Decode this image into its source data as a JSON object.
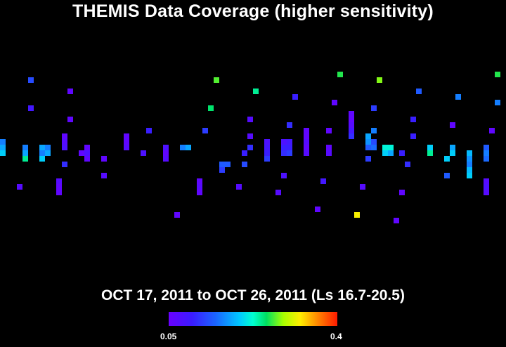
{
  "chart_data": {
    "type": "heatmap",
    "title": "THEMIS Data Coverage (higher sensitivity)",
    "subtitle": "OCT 17, 2011 to OCT 26, 2011 (Ls 16.7-20.5)",
    "colorbar": {
      "min": 0.05,
      "max": 0.4,
      "min_label": "0.05",
      "max_label": "0.4"
    },
    "cells": [
      [
        0,
        198,
        3,
        0.16
      ],
      [
        0,
        206,
        3,
        0.18
      ],
      [
        0,
        214,
        3,
        0.2
      ],
      [
        32,
        206,
        3,
        0.16
      ],
      [
        32,
        214,
        2,
        0.18
      ],
      [
        32,
        222,
        1,
        0.24
      ],
      [
        40,
        110,
        1,
        0.13
      ],
      [
        40,
        150,
        1,
        0.09
      ],
      [
        56,
        206,
        1,
        0.18
      ],
      [
        56,
        214,
        1,
        0.16
      ],
      [
        56,
        222,
        1,
        0.2
      ],
      [
        64,
        206,
        1,
        0.16
      ],
      [
        64,
        214,
        1,
        0.18
      ],
      [
        88,
        190,
        3,
        0.06
      ],
      [
        88,
        198,
        2,
        0.07
      ],
      [
        88,
        206,
        2,
        0.08
      ],
      [
        88,
        230,
        1,
        0.11
      ],
      [
        96,
        126,
        1,
        0.06
      ],
      [
        96,
        166,
        1,
        0.06
      ],
      [
        112,
        214,
        1,
        0.06
      ],
      [
        120,
        206,
        2,
        0.06
      ],
      [
        120,
        214,
        2,
        0.08
      ],
      [
        120,
        222,
        1,
        0.06
      ],
      [
        144,
        222,
        1,
        0.06
      ],
      [
        144,
        246,
        1,
        0.07
      ],
      [
        176,
        190,
        3,
        0.06
      ],
      [
        176,
        198,
        2,
        0.06
      ],
      [
        176,
        206,
        1,
        0.07
      ],
      [
        200,
        214,
        1,
        0.08
      ],
      [
        208,
        182,
        1,
        0.1
      ],
      [
        24,
        262,
        1,
        0.07
      ],
      [
        80,
        254,
        3,
        0.07
      ],
      [
        80,
        262,
        2,
        0.06
      ],
      [
        80,
        270,
        1,
        0.06
      ],
      [
        232,
        206,
        1,
        0.08
      ],
      [
        232,
        214,
        1,
        0.06
      ],
      [
        232,
        222,
        1,
        0.07
      ],
      [
        248,
        302,
        1,
        0.06
      ],
      [
        256,
        206,
        3,
        0.16
      ],
      [
        264,
        206,
        2,
        0.18
      ],
      [
        280,
        254,
        3,
        0.06
      ],
      [
        280,
        262,
        2,
        0.07
      ],
      [
        280,
        270,
        1,
        0.06
      ],
      [
        288,
        182,
        1,
        0.12
      ],
      [
        296,
        150,
        1,
        0.25
      ],
      [
        304,
        110,
        1,
        0.27
      ],
      [
        312,
        230,
        2,
        0.14
      ],
      [
        312,
        238,
        1,
        0.12
      ],
      [
        320,
        230,
        1,
        0.14
      ],
      [
        336,
        262,
        1,
        0.07
      ],
      [
        344,
        214,
        1,
        0.1
      ],
      [
        344,
        230,
        1,
        0.13
      ],
      [
        352,
        206,
        1,
        0.11
      ],
      [
        352,
        190,
        1,
        0.07
      ],
      [
        352,
        166,
        1,
        0.07
      ],
      [
        360,
        126,
        1,
        0.24
      ],
      [
        376,
        198,
        3,
        0.08
      ],
      [
        376,
        206,
        2,
        0.09
      ],
      [
        376,
        214,
        1,
        0.1
      ],
      [
        376,
        222,
        1,
        0.12
      ],
      [
        392,
        270,
        1,
        0.07
      ],
      [
        400,
        246,
        1,
        0.08
      ],
      [
        400,
        198,
        1,
        0.08
      ],
      [
        400,
        206,
        2,
        0.1
      ],
      [
        400,
        214,
        1,
        0.11
      ],
      [
        408,
        198,
        2,
        0.09
      ],
      [
        408,
        206,
        2,
        0.1
      ],
      [
        408,
        214,
        1,
        0.12
      ],
      [
        408,
        174,
        1,
        0.11
      ],
      [
        416,
        134,
        1,
        0.1
      ],
      [
        432,
        182,
        3,
        0.06
      ],
      [
        432,
        190,
        2,
        0.06
      ],
      [
        432,
        198,
        2,
        0.07
      ],
      [
        432,
        206,
        1,
        0.06
      ],
      [
        432,
        214,
        1,
        0.07
      ],
      [
        448,
        294,
        1,
        0.06
      ],
      [
        456,
        254,
        1,
        0.09
      ],
      [
        464,
        182,
        1,
        0.06
      ],
      [
        464,
        206,
        2,
        0.06
      ],
      [
        464,
        214,
        1,
        0.07
      ],
      [
        472,
        142,
        1,
        0.06
      ],
      [
        480,
        102,
        1,
        0.26
      ],
      [
        496,
        158,
        3,
        0.06
      ],
      [
        496,
        166,
        2,
        0.06
      ],
      [
        496,
        174,
        1,
        0.07
      ],
      [
        496,
        182,
        1,
        0.09
      ],
      [
        496,
        190,
        1,
        0.11
      ],
      [
        504,
        302,
        1,
        0.32
      ],
      [
        512,
        262,
        1,
        0.07
      ],
      [
        520,
        190,
        1,
        0.18
      ],
      [
        520,
        198,
        2,
        0.17
      ],
      [
        520,
        206,
        1,
        0.14
      ],
      [
        520,
        222,
        1,
        0.12
      ],
      [
        528,
        182,
        1,
        0.16
      ],
      [
        528,
        198,
        1,
        0.13
      ],
      [
        528,
        206,
        1,
        0.15
      ],
      [
        528,
        150,
        1,
        0.12
      ],
      [
        536,
        110,
        1,
        0.28
      ],
      [
        544,
        206,
        2,
        0.22
      ],
      [
        544,
        214,
        1,
        0.2
      ],
      [
        552,
        206,
        1,
        0.22
      ],
      [
        552,
        214,
        1,
        0.18
      ],
      [
        560,
        310,
        1,
        0.06
      ],
      [
        568,
        270,
        1,
        0.06
      ],
      [
        568,
        214,
        1,
        0.1
      ],
      [
        576,
        230,
        1,
        0.11
      ],
      [
        584,
        166,
        1,
        0.1
      ],
      [
        584,
        190,
        1,
        0.1
      ],
      [
        592,
        126,
        1,
        0.14
      ],
      [
        608,
        206,
        1,
        0.2
      ],
      [
        608,
        214,
        1,
        0.24
      ],
      [
        632,
        222,
        1,
        0.2
      ],
      [
        632,
        246,
        1,
        0.14
      ],
      [
        640,
        174,
        1,
        0.06
      ],
      [
        640,
        206,
        1,
        0.18
      ],
      [
        640,
        214,
        1,
        0.2
      ],
      [
        648,
        134,
        1,
        0.16
      ],
      [
        664,
        214,
        3,
        0.19
      ],
      [
        664,
        222,
        2,
        0.17
      ],
      [
        664,
        230,
        1,
        0.16
      ],
      [
        664,
        238,
        1,
        0.19
      ],
      [
        664,
        246,
        1,
        0.2
      ],
      [
        688,
        206,
        1,
        0.14
      ],
      [
        688,
        214,
        2,
        0.16
      ],
      [
        688,
        222,
        1,
        0.15
      ],
      [
        688,
        254,
        3,
        0.07
      ],
      [
        688,
        262,
        2,
        0.08
      ],
      [
        688,
        270,
        1,
        0.07
      ],
      [
        696,
        182,
        1,
        0.06
      ],
      [
        704,
        102,
        1,
        0.26
      ],
      [
        704,
        142,
        1,
        0.16
      ]
    ]
  }
}
